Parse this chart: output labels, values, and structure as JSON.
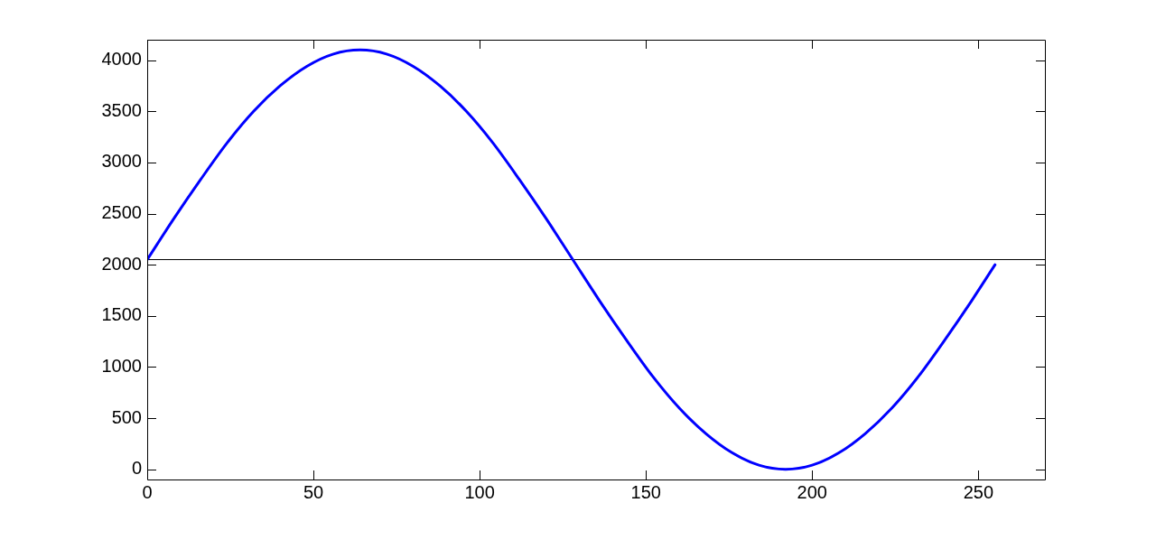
{
  "chart_data": {
    "type": "line",
    "x": [
      0,
      8,
      16,
      24,
      32,
      40,
      48,
      56,
      64,
      72,
      80,
      88,
      96,
      104,
      112,
      120,
      128,
      136,
      144,
      152,
      160,
      168,
      176,
      184,
      192,
      200,
      208,
      216,
      224,
      232,
      240,
      248,
      255
    ],
    "series": [
      {
        "color": "#0000ff",
        "values": [
          2050,
          2450,
          2830,
          3190,
          3500,
          3750,
          3940,
          4060,
          4100,
          4060,
          3940,
          3750,
          3500,
          3190,
          2830,
          2450,
          2050,
          1650,
          1270,
          910,
          600,
          350,
          160,
          40,
          0,
          40,
          160,
          350,
          600,
          910,
          1270,
          1650,
          2000
        ]
      }
    ],
    "xlim": [
      0,
      270
    ],
    "xticks": [
      0,
      50,
      100,
      150,
      200,
      250
    ],
    "ylim": [
      -100,
      4200
    ],
    "yticks": [
      0,
      500,
      1000,
      1500,
      2000,
      2500,
      3000,
      3500,
      4000
    ],
    "ref_lines": [
      {
        "axis": "y",
        "value": 2050,
        "color": "#000000"
      }
    ],
    "grid": false,
    "legend": false,
    "marker": "none",
    "line_style": "solid"
  }
}
